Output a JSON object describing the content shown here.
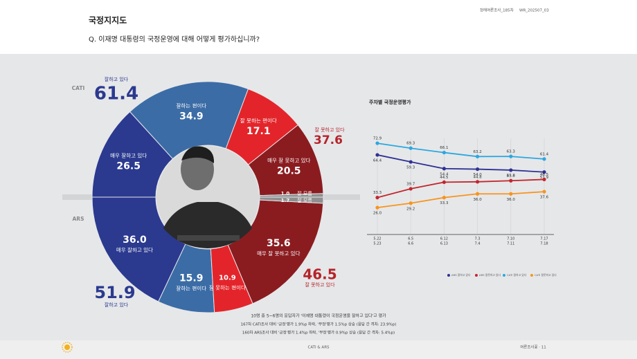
{
  "header": {
    "title": "국정지지도",
    "question": "Q. 이재명 대통령의 국정운영에 대해 어떻게 평가하십니까?",
    "survey_id": "정례여론조사_185차",
    "report_id": "WR_202507_03"
  },
  "chart_data": [
    {
      "type": "half-donut",
      "label": "CATI",
      "half": "top",
      "categories": [
        "매우 잘하고 있다",
        "잘하는 편이다",
        "잘 못하는 편이다",
        "매우 잘 못하고 있다",
        "잘 모름"
      ],
      "values": [
        26.5,
        34.9,
        17.1,
        20.5,
        1.0
      ],
      "value_labels": [
        "26.5",
        "34.9",
        "17.1",
        "20.5",
        "1.0"
      ],
      "colors": [
        "#2b3a8f",
        "#3b6ca6",
        "#e3252b",
        "#8a1c20",
        "#8f8f8f"
      ],
      "summary": [
        {
          "label": "잘하고 있다",
          "value": 61.4,
          "color": "#2b3a8f"
        },
        {
          "label": "잘 못하고 있다",
          "value": 37.6,
          "color": "#b5242a"
        }
      ]
    },
    {
      "type": "half-donut",
      "label": "ARS",
      "half": "bottom",
      "categories": [
        "매우 잘하고 있다",
        "잘하는 편이다",
        "잘 못하는 편이다",
        "매우 잘 못하고 있다",
        "잘 모름"
      ],
      "values": [
        36.0,
        15.9,
        10.9,
        35.6,
        1.7
      ],
      "value_labels": [
        "36.0",
        "15.9",
        "10.9",
        "35.6",
        "1.7"
      ],
      "colors": [
        "#2b3a8f",
        "#3b6ca6",
        "#e3252b",
        "#8a1c20",
        "#8f8f8f"
      ],
      "summary": [
        {
          "label": "잘하고 있다",
          "value": 51.9,
          "color": "#2b3a8f"
        },
        {
          "label": "잘 못하고 있다",
          "value": 46.5,
          "color": "#b5242a"
        }
      ]
    },
    {
      "type": "line",
      "title": "주차별 국정운영평가",
      "categories": [
        [
          "5.22",
          "5.23"
        ],
        [
          "6.5",
          "6.6"
        ],
        [
          "6.12",
          "6.13"
        ],
        [
          "7.3",
          "7.4"
        ],
        [
          "7.10",
          "7.11"
        ],
        [
          "7.17",
          "7.18"
        ]
      ],
      "ylim": [
        20,
        80
      ],
      "series": [
        {
          "name": "ARS 잘하고 있다",
          "color": "#2e3192",
          "values": [
            64.4,
            59.3,
            54.4,
            54.0,
            53.3,
            51.9
          ],
          "value_labels": [
            "64.4",
            "59.3",
            "54.4",
            "54.0",
            "53.3",
            "51.9"
          ]
        },
        {
          "name": "ARS 잘못하고 있다",
          "color": "#c1272d",
          "values": [
            33.3,
            39.7,
            44.5,
            44.8,
            45.6,
            46.5
          ],
          "value_labels": [
            "33.3",
            "39.7",
            "44.5",
            "44.8",
            "45.6",
            "46.5"
          ]
        },
        {
          "name": "CATI 잘하고 있다",
          "color": "#29a8e0",
          "values": [
            72.9,
            69.3,
            66.1,
            63.2,
            63.3,
            61.4
          ],
          "value_labels": [
            "72.9",
            "69.3",
            "66.1",
            "63.2",
            "63.3",
            "61.4"
          ]
        },
        {
          "name": "CATI 잘못하고 있다",
          "color": "#f7941d",
          "values": [
            26.0,
            29.2,
            33.3,
            36.0,
            36.0,
            37.6
          ],
          "value_labels": [
            "26.0",
            "29.2",
            "33.3",
            "36.0",
            "36.0",
            "37.6"
          ]
        }
      ]
    }
  ],
  "notes": [
    "10명 중 5~6명의 응답자가 '이재명 대통령이 국정운영을 잘하고 있다'고 평가",
    "167차 CATI조사 대비 '긍정'평가 1.9%p 하락, '부정'평가 1.5%p 상승 (응답 간 격차: 23.9%p)",
    "160차 ARS조사 대비 '긍정'평가 1.4%p 하락, '부정'평가 0.9%p 상승 (응답 간 격차: 5.4%p)"
  ],
  "footer": {
    "center": "CATI & ARS",
    "right": "여론조사꽃 · 11"
  }
}
